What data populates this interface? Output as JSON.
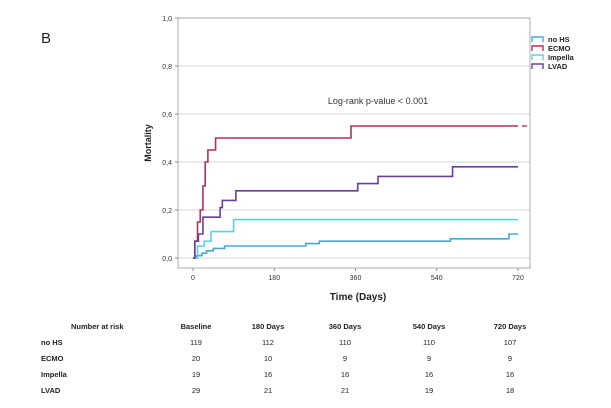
{
  "panel_label": "B",
  "chart_data": {
    "type": "line",
    "step": true,
    "xlabel": "Time (Days)",
    "ylabel": "Mortality",
    "xlim": [
      0,
      720
    ],
    "ylim": [
      0,
      1.0
    ],
    "x_ticks": [
      0,
      180,
      360,
      540,
      720
    ],
    "y_ticks": [
      0.0,
      0.2,
      0.4,
      0.6,
      0.8,
      1.0
    ],
    "y_tick_labels": [
      "0,0",
      "0,2",
      "0,4",
      "0,6",
      "0,8",
      "1,0"
    ],
    "grid": "horizontal",
    "legend_position": "top-right",
    "annotation": "Log-rank p-value < 0.001",
    "series": [
      {
        "name": "no HS",
        "color": "#4aa8d8",
        "points": [
          [
            0,
            0.0
          ],
          [
            8,
            0.01
          ],
          [
            20,
            0.02
          ],
          [
            30,
            0.03
          ],
          [
            45,
            0.04
          ],
          [
            70,
            0.05
          ],
          [
            150,
            0.05
          ],
          [
            250,
            0.06
          ],
          [
            280,
            0.07
          ],
          [
            570,
            0.08
          ],
          [
            690,
            0.08
          ],
          [
            700,
            0.1
          ],
          [
            720,
            0.1
          ]
        ]
      },
      {
        "name": "ECMO",
        "color": "#b5305a",
        "points": [
          [
            0,
            0.0
          ],
          [
            4,
            0.07
          ],
          [
            10,
            0.15
          ],
          [
            16,
            0.2
          ],
          [
            22,
            0.3
          ],
          [
            27,
            0.4
          ],
          [
            33,
            0.45
          ],
          [
            50,
            0.5
          ],
          [
            340,
            0.5
          ],
          [
            350,
            0.55
          ],
          [
            720,
            0.55
          ]
        ]
      },
      {
        "name": "Impella",
        "color": "#5fd0dd",
        "points": [
          [
            0,
            0.0
          ],
          [
            10,
            0.05
          ],
          [
            25,
            0.07
          ],
          [
            40,
            0.11
          ],
          [
            80,
            0.11
          ],
          [
            90,
            0.16
          ],
          [
            720,
            0.16
          ]
        ]
      },
      {
        "name": "LVAD",
        "color": "#6a3ea1",
        "points": [
          [
            0,
            0.0
          ],
          [
            4,
            0.07
          ],
          [
            12,
            0.1
          ],
          [
            22,
            0.17
          ],
          [
            55,
            0.17
          ],
          [
            60,
            0.21
          ],
          [
            65,
            0.24
          ],
          [
            90,
            0.24
          ],
          [
            95,
            0.28
          ],
          [
            360,
            0.28
          ],
          [
            365,
            0.31
          ],
          [
            400,
            0.31
          ],
          [
            410,
            0.34
          ],
          [
            570,
            0.34
          ],
          [
            575,
            0.38
          ],
          [
            720,
            0.38
          ]
        ]
      }
    ]
  },
  "risk_table": {
    "title": "Number at risk",
    "columns": [
      "Baseline",
      "180 Days",
      "360 Days",
      "540 Days",
      "720 Days"
    ],
    "rows": [
      {
        "label": "no HS",
        "values": [
          119,
          112,
          110,
          110,
          107
        ]
      },
      {
        "label": "ECMO",
        "values": [
          20,
          10,
          9,
          9,
          9
        ]
      },
      {
        "label": "Impella",
        "values": [
          19,
          16,
          16,
          16,
          16
        ]
      },
      {
        "label": "LVAD",
        "values": [
          29,
          21,
          21,
          19,
          18
        ]
      }
    ]
  }
}
